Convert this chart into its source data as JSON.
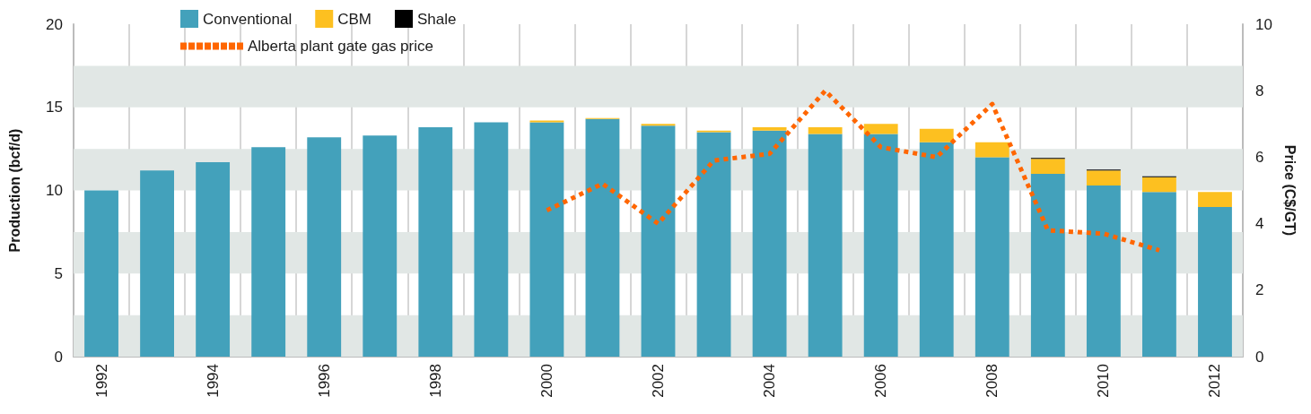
{
  "chart_data": {
    "type": "bar",
    "stacked": true,
    "categories": [
      "1992",
      null,
      "1994",
      null,
      "1996",
      null,
      "1998",
      null,
      "2000",
      null,
      "2002",
      null,
      "2004",
      null,
      "2006",
      null,
      "2008",
      null,
      "2010",
      null,
      "2012"
    ],
    "series": [
      {
        "name": "Conventional",
        "color": "#43a1bb",
        "values": [
          10.0,
          11.2,
          11.7,
          12.6,
          13.2,
          13.3,
          13.8,
          14.1,
          14.1,
          14.3,
          13.9,
          13.5,
          13.6,
          13.4,
          13.4,
          12.9,
          12.0,
          11.0,
          10.3,
          9.9,
          9.0
        ]
      },
      {
        "name": "CBM",
        "color": "#fdc020",
        "values": [
          null,
          null,
          null,
          null,
          null,
          null,
          null,
          null,
          0.1,
          0.05,
          0.1,
          0.1,
          0.2,
          0.4,
          0.6,
          0.8,
          0.9,
          0.9,
          0.9,
          0.9,
          0.9
        ]
      },
      {
        "name": "Shale",
        "color": "#000000",
        "values": [
          null,
          null,
          null,
          null,
          null,
          null,
          null,
          null,
          null,
          null,
          null,
          null,
          null,
          null,
          null,
          null,
          null,
          0.05,
          0.05,
          0.05,
          null
        ]
      },
      {
        "name": "Alberta plant gate gas price",
        "type": "line",
        "axis": "y2",
        "color": "#ff6600",
        "values": [
          null,
          null,
          null,
          null,
          null,
          null,
          null,
          null,
          4.4,
          5.2,
          4.0,
          5.9,
          6.1,
          8.0,
          6.3,
          6.0,
          7.6,
          3.8,
          3.7,
          3.2,
          null
        ]
      }
    ],
    "ylabel": "Production (bcf/d)",
    "y2label": "Price (C$/GT)",
    "ylim": [
      0,
      20
    ],
    "yticks": [
      0,
      5,
      10,
      15,
      20
    ],
    "y2lim": [
      0,
      10
    ],
    "y2ticks": [
      0,
      2,
      4,
      6,
      8,
      10
    ],
    "bands": [
      {
        "axis": "y",
        "from": 0,
        "to": 2.5,
        "color": "#e1e7e5"
      },
      {
        "axis": "y",
        "from": 5,
        "to": 7.5,
        "color": "#e1e7e5"
      },
      {
        "axis": "y",
        "from": 10,
        "to": 12.5,
        "color": "#e1e7e5"
      },
      {
        "axis": "y",
        "from": 15,
        "to": 17.5,
        "color": "#e1e7e5"
      }
    ],
    "grid": "x",
    "legend": "top left",
    "marker": "none",
    "line_style": "dotted"
  }
}
